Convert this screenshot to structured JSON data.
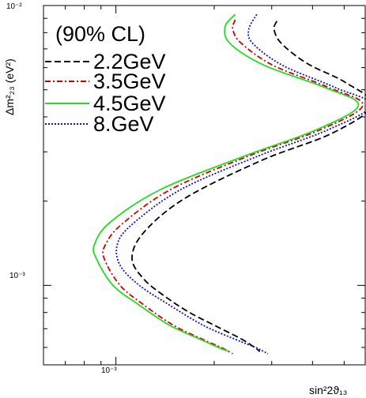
{
  "chart_data": {
    "type": "line",
    "title": "",
    "xlabel": "sin²2ϑ₁₃",
    "ylabel": "Δm²₂₃ (eV²)",
    "xscale": "log",
    "yscale": "log",
    "xlim": [
      0.0006,
      0.0058
    ],
    "ylim": [
      0.00052,
      0.01
    ],
    "grid": false,
    "legend": {
      "title": "(90% CL)",
      "placement": "top-left",
      "entries": [
        "2.2GeV",
        "3.5GeV",
        "4.5GeV",
        "8.GeV"
      ]
    },
    "x_tick_labels": [
      "10⁻³"
    ],
    "y_tick_labels": [
      "10⁻²",
      "10⁻³"
    ],
    "series": [
      {
        "name": "2.2GeV",
        "color": "#000000",
        "dash": "8,4",
        "points": [
          [
            0.00311,
            0.0088
          ],
          [
            0.00305,
            0.0082
          ],
          [
            0.00322,
            0.0073
          ],
          [
            0.00386,
            0.0062
          ],
          [
            0.00506,
            0.0053
          ],
          [
            0.00608,
            0.0044
          ],
          [
            0.0046,
            0.0035
          ],
          [
            0.0028,
            0.0028
          ],
          [
            0.00163,
            0.00205
          ],
          [
            0.00122,
            0.00155
          ],
          [
            0.00112,
            0.00125
          ],
          [
            0.00122,
            0.00105
          ],
          [
            0.00142,
            0.00091
          ],
          [
            0.00168,
            0.0008
          ],
          [
            0.00205,
            0.00071
          ],
          [
            0.00244,
            0.00064
          ],
          [
            0.00266,
            0.0006
          ],
          [
            0.00276,
            0.00058
          ]
        ]
      },
      {
        "name": "3.5GeV",
        "color": "#d00000",
        "dash": "7,3,2,3",
        "points": [
          [
            0.00232,
            0.0089
          ],
          [
            0.00228,
            0.0082
          ],
          [
            0.00243,
            0.0073
          ],
          [
            0.00304,
            0.0061
          ],
          [
            0.00447,
            0.0051
          ],
          [
            0.0057,
            0.0044
          ],
          [
            0.00423,
            0.0036
          ],
          [
            0.00255,
            0.0029
          ],
          [
            0.00147,
            0.0022
          ],
          [
            0.00104,
            0.00165
          ],
          [
            0.00093,
            0.0014
          ],
          [
            0.00092,
            0.00125
          ],
          [
            0.00103,
            0.001
          ],
          [
            0.00122,
            0.00085
          ],
          [
            0.0015,
            0.00072
          ],
          [
            0.00185,
            0.00064
          ],
          [
            0.0021,
            0.0006
          ],
          [
            0.00228,
            0.00057
          ]
        ]
      },
      {
        "name": "4.5GeV",
        "color": "#22dd22",
        "dash": "",
        "points": [
          [
            0.00232,
            0.0093
          ],
          [
            0.00216,
            0.0084
          ],
          [
            0.00224,
            0.0073
          ],
          [
            0.00286,
            0.0061
          ],
          [
            0.00435,
            0.0051
          ],
          [
            0.00553,
            0.0044
          ],
          [
            0.00412,
            0.0036
          ],
          [
            0.00248,
            0.0029
          ],
          [
            0.00137,
            0.0022
          ],
          [
            0.00096,
            0.00168
          ],
          [
            0.00086,
            0.0014
          ],
          [
            0.00087,
            0.00125
          ],
          [
            0.00098,
            0.001
          ],
          [
            0.00118,
            0.00085
          ],
          [
            0.00146,
            0.00072
          ],
          [
            0.00182,
            0.00064
          ],
          [
            0.00206,
            0.0006
          ],
          [
            0.00222,
            0.00058
          ]
        ]
      },
      {
        "name": "8.GeV",
        "color": "#1010d0",
        "dash": "2,2",
        "points": [
          [
            0.0027,
            0.0093
          ],
          [
            0.00255,
            0.0082
          ],
          [
            0.00263,
            0.0073
          ],
          [
            0.00325,
            0.0061
          ],
          [
            0.00468,
            0.0051
          ],
          [
            0.00604,
            0.0044
          ],
          [
            0.00447,
            0.0036
          ],
          [
            0.00273,
            0.0029
          ],
          [
            0.00158,
            0.0022
          ],
          [
            0.00112,
            0.00165
          ],
          [
            0.00101,
            0.0014
          ],
          [
            0.00103,
            0.00118
          ],
          [
            0.00118,
            0.001
          ],
          [
            0.00146,
            0.00085
          ],
          [
            0.00185,
            0.00072
          ],
          [
            0.00233,
            0.00064
          ],
          [
            0.00268,
            0.0006
          ],
          [
            0.00292,
            0.00057
          ]
        ]
      }
    ]
  }
}
